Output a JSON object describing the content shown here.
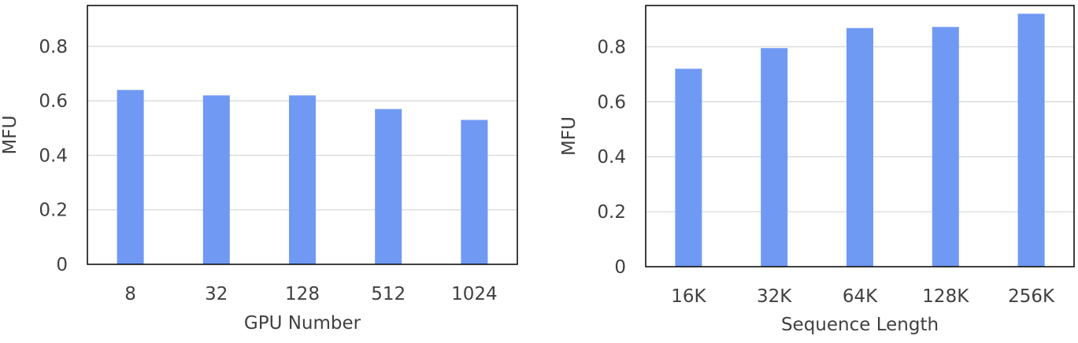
{
  "chart_data": [
    {
      "type": "bar",
      "categories": [
        "8",
        "32",
        "128",
        "512",
        "1024"
      ],
      "values": [
        0.64,
        0.62,
        0.62,
        0.57,
        0.53
      ],
      "title": "",
      "xlabel": "GPU Number",
      "ylabel": "MFU",
      "ylim": [
        0,
        0.95
      ],
      "yticks": [
        0,
        0.2,
        0.4,
        0.6,
        0.8
      ],
      "ytick_labels": [
        "0",
        "0.2",
        "0.4",
        "0.6",
        "0.8"
      ],
      "grid": true,
      "legend": "none",
      "bar_color": "#7099f3"
    },
    {
      "type": "bar",
      "categories": [
        "16K",
        "32K",
        "64K",
        "128K",
        "256K"
      ],
      "values": [
        0.72,
        0.795,
        0.868,
        0.872,
        0.92
      ],
      "title": "",
      "xlabel": "Sequence Length",
      "ylabel": "MFU",
      "ylim": [
        0,
        0.95
      ],
      "yticks": [
        0,
        0.2,
        0.4,
        0.6,
        0.8
      ],
      "ytick_labels": [
        "0",
        "0.2",
        "0.4",
        "0.6",
        "0.8"
      ],
      "grid": true,
      "legend": "none",
      "bar_color": "#7099f3"
    }
  ],
  "colors": {
    "grid": "#d9d9d9",
    "frame": "#000000",
    "text": "#404040"
  }
}
